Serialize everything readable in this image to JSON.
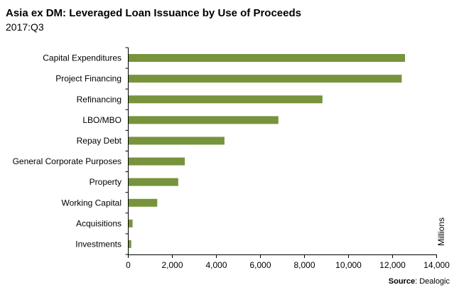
{
  "header": {
    "title": "Asia ex DM: Leveraged Loan Issuance by Use of Proceeds",
    "subtitle": "2017:Q3"
  },
  "footer": {
    "source_label": "Source",
    "source_value": ": Dealogic"
  },
  "chart_data": {
    "type": "bar",
    "orientation": "horizontal",
    "categories": [
      "Capital Expenditures",
      "Project Financing",
      "Refinancing",
      "LBO/MBO",
      "Repay Debt",
      "General Corporate Purposes",
      "Property",
      "Working Capital",
      "Acquisitions",
      "Investments"
    ],
    "values": [
      12550,
      12400,
      8800,
      6800,
      4350,
      2550,
      2250,
      1300,
      180,
      120
    ],
    "xlim": [
      0,
      14000
    ],
    "xticks": [
      "0",
      "2,000",
      "4,000",
      "6,000",
      "8,000",
      "10,000",
      "12,000",
      "14,000"
    ],
    "xtick_values": [
      0,
      2000,
      4000,
      6000,
      8000,
      10000,
      12000,
      14000
    ],
    "unit_label": "Millions",
    "bar_color": "#77933C",
    "grid": false,
    "legend": "none"
  }
}
